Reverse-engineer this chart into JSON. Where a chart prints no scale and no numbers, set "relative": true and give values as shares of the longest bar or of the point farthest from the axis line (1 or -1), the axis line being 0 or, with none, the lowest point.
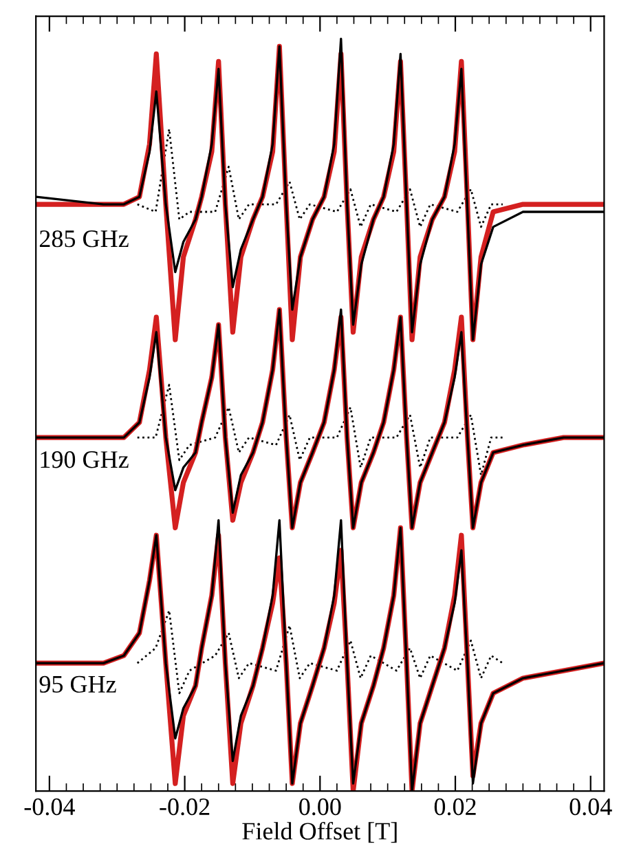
{
  "chart_data": {
    "type": "line",
    "relative": true,
    "xlabel": "Field Offset [T]",
    "xlim": [
      -0.042,
      0.042
    ],
    "xticks": [
      {
        "value": -0.04,
        "label": "-0.04"
      },
      {
        "value": -0.02,
        "label": "-0.02"
      },
      {
        "value": 0.0,
        "label": "0.00"
      },
      {
        "value": 0.02,
        "label": "0.02"
      },
      {
        "value": 0.04,
        "label": "0.04"
      },
      {
        "value": -0.0375,
        "label": null
      },
      {
        "value": -0.035,
        "label": null
      },
      {
        "value": -0.0325,
        "label": null
      },
      {
        "value": -0.03,
        "label": null
      },
      {
        "value": -0.0275,
        "label": null
      },
      {
        "value": -0.025,
        "label": null
      },
      {
        "value": -0.0225,
        "label": null
      },
      {
        "value": -0.0175,
        "label": null
      },
      {
        "value": -0.015,
        "label": null
      },
      {
        "value": -0.0125,
        "label": null
      },
      {
        "value": -0.01,
        "label": null
      },
      {
        "value": -0.0075,
        "label": null
      },
      {
        "value": -0.005,
        "label": null
      },
      {
        "value": -0.0025,
        "label": null
      },
      {
        "value": 0.0025,
        "label": null
      },
      {
        "value": 0.005,
        "label": null
      },
      {
        "value": 0.0075,
        "label": null
      },
      {
        "value": 0.01,
        "label": null
      },
      {
        "value": 0.0125,
        "label": null
      },
      {
        "value": 0.015,
        "label": null
      },
      {
        "value": 0.0175,
        "label": null
      },
      {
        "value": 0.0225,
        "label": null
      },
      {
        "value": 0.025,
        "label": null
      },
      {
        "value": 0.0275,
        "label": null
      },
      {
        "value": 0.03,
        "label": null
      },
      {
        "value": 0.0325,
        "label": null
      },
      {
        "value": 0.035,
        "label": null
      },
      {
        "value": 0.0375,
        "label": null
      }
    ],
    "grid": false,
    "legend": false,
    "annotations": [
      "285 GHz",
      "190 GHz",
      "95 GHz"
    ],
    "series": [
      {
        "color": "#000000",
        "line_style": "dotted",
        "x": [
          -0.027,
          -0.0243,
          -0.0223,
          -0.0208,
          -0.0193,
          -0.0155,
          -0.0135,
          -0.012,
          -0.0105,
          -0.0065,
          -0.0045,
          -0.003,
          -0.0015,
          0.0025,
          0.0045,
          0.006,
          0.0075,
          0.0113,
          0.0133,
          0.0148,
          0.0163,
          0.0203,
          0.0223,
          0.0238,
          0.0253,
          0.027
        ],
        "values": [
          0.78,
          0.77,
          0.88,
          0.76,
          0.77,
          0.77,
          0.83,
          0.76,
          0.78,
          0.78,
          0.81,
          0.76,
          0.78,
          0.77,
          0.8,
          0.75,
          0.78,
          0.77,
          0.8,
          0.75,
          0.78,
          0.77,
          0.8,
          0.75,
          0.78,
          0.78
        ]
      },
      {
        "color": "#d42020",
        "line_style": "solid",
        "x": [
          -0.042,
          -0.032,
          -0.029,
          -0.0267,
          -0.0252,
          -0.0242,
          -0.0228,
          -0.0214,
          -0.0202,
          -0.0184,
          -0.0175,
          -0.016,
          -0.015,
          -0.014,
          -0.0129,
          -0.0117,
          -0.0099,
          -0.0085,
          -0.007,
          -0.006,
          -0.005,
          -0.0041,
          -0.0029,
          -0.0011,
          0.0006,
          0.0021,
          0.0031,
          0.004,
          0.0049,
          0.0061,
          0.0079,
          0.0094,
          0.0109,
          0.0119,
          0.0128,
          0.0136,
          0.0148,
          0.0166,
          0.0184,
          0.0199,
          0.0209,
          0.0218,
          0.0226,
          0.0238,
          0.0256,
          0.03,
          0.036,
          0.042
        ],
        "values": [
          0.78,
          0.78,
          0.78,
          0.79,
          0.86,
          0.98,
          0.78,
          0.6,
          0.71,
          0.76,
          0.79,
          0.85,
          0.97,
          0.78,
          0.61,
          0.71,
          0.76,
          0.79,
          0.85,
          0.99,
          0.78,
          0.6,
          0.71,
          0.76,
          0.79,
          0.85,
          0.98,
          0.78,
          0.61,
          0.71,
          0.76,
          0.79,
          0.85,
          0.97,
          0.78,
          0.6,
          0.71,
          0.76,
          0.79,
          0.85,
          0.97,
          0.78,
          0.6,
          0.71,
          0.77,
          0.78,
          0.78,
          0.78
        ]
      },
      {
        "color": "#000000",
        "line_style": "solid",
        "x": [
          -0.042,
          -0.032,
          -0.029,
          -0.0267,
          -0.0252,
          -0.0242,
          -0.0228,
          -0.0214,
          -0.0202,
          -0.0184,
          -0.0175,
          -0.016,
          -0.015,
          -0.014,
          -0.0129,
          -0.0117,
          -0.0099,
          -0.0085,
          -0.007,
          -0.006,
          -0.005,
          -0.0041,
          -0.0029,
          -0.0011,
          0.0006,
          0.0021,
          0.0031,
          0.004,
          0.0049,
          0.0061,
          0.0079,
          0.0094,
          0.0109,
          0.0119,
          0.0128,
          0.0136,
          0.0148,
          0.0166,
          0.0184,
          0.0199,
          0.0209,
          0.0218,
          0.0226,
          0.0238,
          0.0256,
          0.03,
          0.036,
          0.042
        ],
        "values": [
          0.79,
          0.78,
          0.78,
          0.79,
          0.85,
          0.93,
          0.78,
          0.69,
          0.73,
          0.76,
          0.79,
          0.86,
          0.96,
          0.78,
          0.67,
          0.72,
          0.76,
          0.79,
          0.86,
          0.99,
          0.78,
          0.64,
          0.71,
          0.76,
          0.79,
          0.86,
          1.0,
          0.78,
          0.62,
          0.7,
          0.76,
          0.79,
          0.86,
          0.98,
          0.78,
          0.61,
          0.7,
          0.76,
          0.79,
          0.86,
          0.96,
          0.77,
          0.6,
          0.7,
          0.75,
          0.77,
          0.77,
          0.77
        ]
      },
      {
        "color": "#000000",
        "line_style": "dotted",
        "x": [
          -0.027,
          -0.0243,
          -0.0223,
          -0.0208,
          -0.0193,
          -0.0155,
          -0.0135,
          -0.012,
          -0.0105,
          -0.0065,
          -0.0045,
          -0.003,
          -0.0015,
          0.0025,
          0.0045,
          0.006,
          0.0075,
          0.0113,
          0.0133,
          0.0148,
          0.0163,
          0.0203,
          0.0223,
          0.0238,
          0.0253,
          0.027
        ],
        "values": [
          0.47,
          0.47,
          0.54,
          0.44,
          0.46,
          0.47,
          0.51,
          0.45,
          0.47,
          0.46,
          0.5,
          0.44,
          0.47,
          0.47,
          0.51,
          0.43,
          0.47,
          0.47,
          0.5,
          0.43,
          0.47,
          0.47,
          0.5,
          0.42,
          0.47,
          0.47
        ]
      },
      {
        "color": "#d42020",
        "line_style": "solid",
        "x": [
          -0.042,
          -0.032,
          -0.029,
          -0.0267,
          -0.0252,
          -0.0242,
          -0.0228,
          -0.0214,
          -0.0202,
          -0.0184,
          -0.0175,
          -0.016,
          -0.015,
          -0.014,
          -0.0129,
          -0.0117,
          -0.0099,
          -0.0085,
          -0.007,
          -0.006,
          -0.005,
          -0.0041,
          -0.0029,
          -0.0011,
          0.0006,
          0.0021,
          0.0031,
          0.004,
          0.0049,
          0.0061,
          0.0079,
          0.0094,
          0.0109,
          0.0119,
          0.0128,
          0.0136,
          0.0148,
          0.0166,
          0.0184,
          0.0199,
          0.0209,
          0.0218,
          0.0226,
          0.0238,
          0.0256,
          0.03,
          0.036,
          0.042
        ],
        "values": [
          0.47,
          0.47,
          0.47,
          0.49,
          0.56,
          0.63,
          0.47,
          0.35,
          0.41,
          0.45,
          0.49,
          0.55,
          0.62,
          0.47,
          0.36,
          0.41,
          0.45,
          0.49,
          0.56,
          0.64,
          0.47,
          0.35,
          0.41,
          0.45,
          0.49,
          0.56,
          0.63,
          0.47,
          0.35,
          0.41,
          0.45,
          0.49,
          0.56,
          0.63,
          0.47,
          0.35,
          0.41,
          0.45,
          0.49,
          0.56,
          0.63,
          0.47,
          0.35,
          0.41,
          0.45,
          0.46,
          0.47,
          0.47
        ]
      },
      {
        "color": "#000000",
        "line_style": "solid",
        "x": [
          -0.042,
          -0.032,
          -0.029,
          -0.0267,
          -0.0252,
          -0.0242,
          -0.0228,
          -0.0214,
          -0.0202,
          -0.0184,
          -0.0175,
          -0.016,
          -0.015,
          -0.014,
          -0.0129,
          -0.0117,
          -0.0099,
          -0.0085,
          -0.007,
          -0.006,
          -0.005,
          -0.0041,
          -0.0029,
          -0.0011,
          0.0006,
          0.0021,
          0.0031,
          0.004,
          0.0049,
          0.0061,
          0.0079,
          0.0094,
          0.0109,
          0.0119,
          0.0128,
          0.0136,
          0.0148,
          0.0166,
          0.0184,
          0.0199,
          0.0209,
          0.0218,
          0.0226,
          0.0238,
          0.0256,
          0.03,
          0.036,
          0.042
        ],
        "values": [
          0.47,
          0.47,
          0.47,
          0.49,
          0.55,
          0.61,
          0.47,
          0.4,
          0.43,
          0.45,
          0.49,
          0.55,
          0.62,
          0.47,
          0.37,
          0.42,
          0.45,
          0.49,
          0.56,
          0.64,
          0.47,
          0.35,
          0.41,
          0.45,
          0.49,
          0.56,
          0.64,
          0.47,
          0.35,
          0.41,
          0.45,
          0.49,
          0.56,
          0.63,
          0.47,
          0.35,
          0.41,
          0.45,
          0.49,
          0.55,
          0.61,
          0.47,
          0.35,
          0.41,
          0.45,
          0.46,
          0.47,
          0.47
        ]
      },
      {
        "color": "#000000",
        "line_style": "dotted",
        "x": [
          -0.027,
          -0.0243,
          -0.0223,
          -0.0208,
          -0.0193,
          -0.0155,
          -0.0135,
          -0.012,
          -0.0105,
          -0.0065,
          -0.0045,
          -0.003,
          -0.0015,
          0.0025,
          0.0045,
          0.006,
          0.0075,
          0.0113,
          0.0133,
          0.0148,
          0.0163,
          0.0203,
          0.0223,
          0.0238,
          0.0253,
          0.027
        ],
        "values": [
          0.17,
          0.19,
          0.24,
          0.13,
          0.16,
          0.18,
          0.21,
          0.15,
          0.17,
          0.16,
          0.22,
          0.15,
          0.17,
          0.16,
          0.2,
          0.15,
          0.18,
          0.16,
          0.19,
          0.15,
          0.18,
          0.16,
          0.2,
          0.15,
          0.18,
          0.17
        ]
      },
      {
        "color": "#d42020",
        "line_style": "solid",
        "x": [
          -0.042,
          -0.032,
          -0.029,
          -0.0267,
          -0.0252,
          -0.0242,
          -0.0228,
          -0.0214,
          -0.0202,
          -0.0184,
          -0.0175,
          -0.016,
          -0.015,
          -0.014,
          -0.0129,
          -0.0117,
          -0.0099,
          -0.0085,
          -0.007,
          -0.006,
          -0.005,
          -0.0041,
          -0.0029,
          -0.0011,
          0.0006,
          0.0021,
          0.0031,
          0.004,
          0.0049,
          0.0061,
          0.0079,
          0.0094,
          0.0109,
          0.0119,
          0.0128,
          0.0136,
          0.0148,
          0.0166,
          0.0184,
          0.0199,
          0.0209,
          0.0218,
          0.0226,
          0.0238,
          0.0256,
          0.03,
          0.036,
          0.042
        ],
        "values": [
          0.17,
          0.17,
          0.18,
          0.21,
          0.28,
          0.34,
          0.17,
          0.01,
          0.1,
          0.14,
          0.19,
          0.26,
          0.34,
          0.17,
          0.01,
          0.09,
          0.14,
          0.19,
          0.25,
          0.31,
          0.17,
          0.01,
          0.09,
          0.14,
          0.19,
          0.25,
          0.32,
          0.17,
          0.0,
          0.09,
          0.14,
          0.19,
          0.26,
          0.35,
          0.17,
          0.0,
          0.09,
          0.14,
          0.19,
          0.26,
          0.34,
          0.17,
          0.02,
          0.09,
          0.13,
          0.15,
          0.16,
          0.17
        ]
      },
      {
        "color": "#000000",
        "line_style": "solid",
        "x": [
          -0.042,
          -0.032,
          -0.029,
          -0.0267,
          -0.0252,
          -0.0242,
          -0.0228,
          -0.0214,
          -0.0202,
          -0.0184,
          -0.0175,
          -0.016,
          -0.015,
          -0.014,
          -0.0129,
          -0.0117,
          -0.0099,
          -0.0085,
          -0.007,
          -0.006,
          -0.005,
          -0.0041,
          -0.0029,
          -0.0011,
          0.0006,
          0.0021,
          0.0031,
          0.004,
          0.0049,
          0.0061,
          0.0079,
          0.0094,
          0.0109,
          0.0119,
          0.0128,
          0.0136,
          0.0148,
          0.0166,
          0.0184,
          0.0199,
          0.0209,
          0.0218,
          0.0226,
          0.0238,
          0.0256,
          0.03,
          0.036,
          0.042
        ],
        "values": [
          0.17,
          0.17,
          0.18,
          0.21,
          0.28,
          0.34,
          0.17,
          0.07,
          0.11,
          0.14,
          0.19,
          0.26,
          0.36,
          0.17,
          0.04,
          0.1,
          0.14,
          0.19,
          0.26,
          0.36,
          0.17,
          0.01,
          0.09,
          0.14,
          0.19,
          0.26,
          0.36,
          0.17,
          0.01,
          0.09,
          0.14,
          0.19,
          0.26,
          0.35,
          0.17,
          0.0,
          0.09,
          0.14,
          0.19,
          0.25,
          0.32,
          0.17,
          0.01,
          0.09,
          0.13,
          0.15,
          0.16,
          0.17
        ]
      }
    ]
  }
}
